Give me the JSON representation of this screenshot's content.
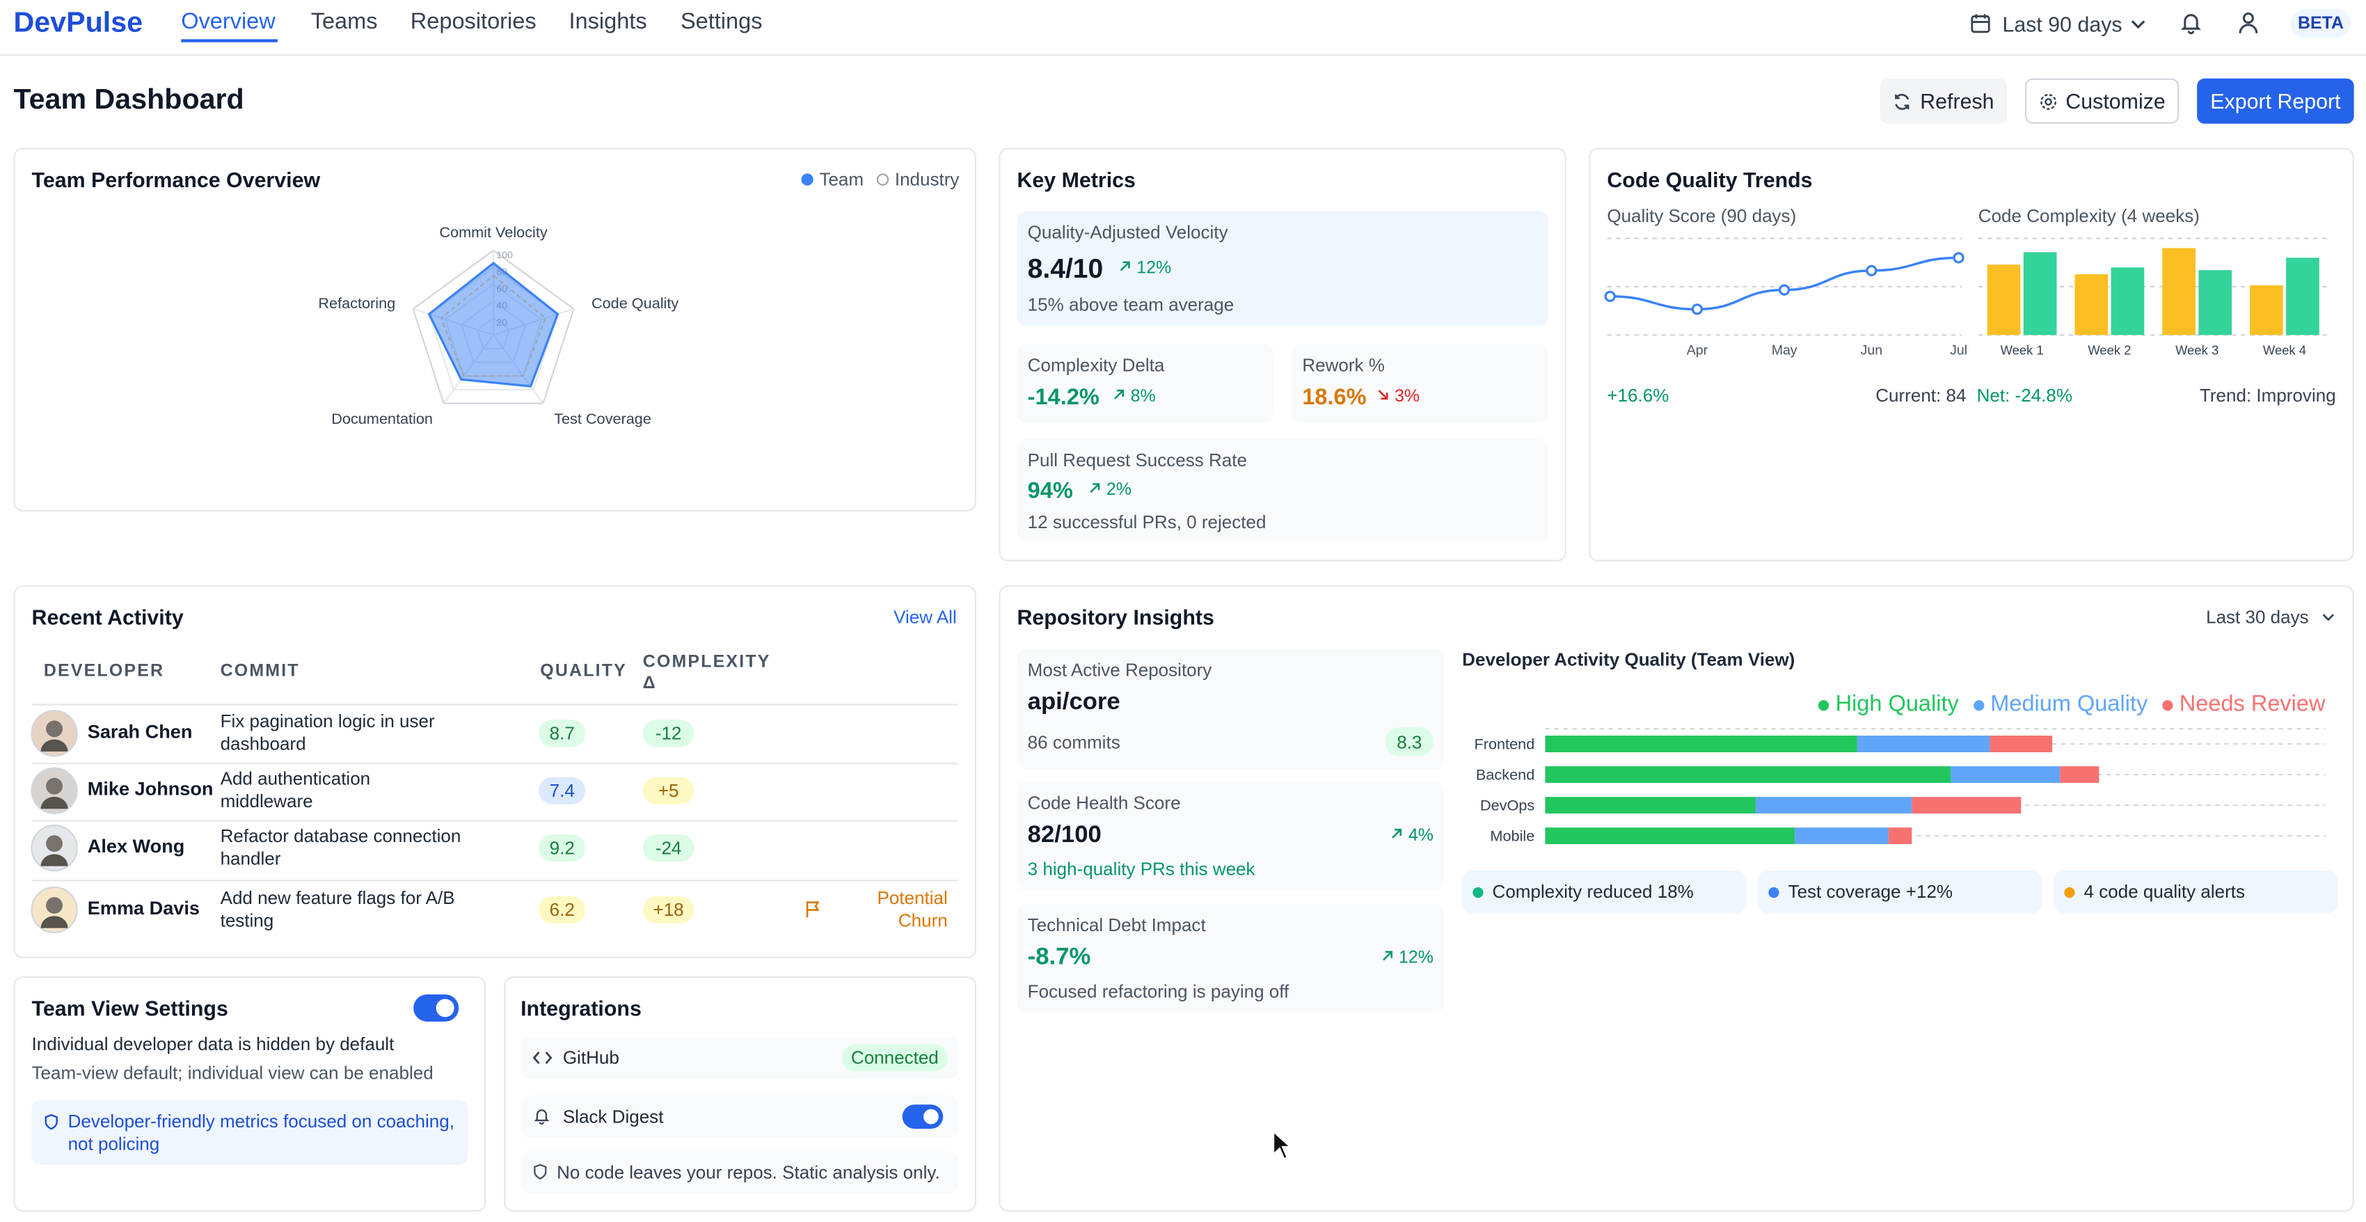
{
  "nav": {
    "brand": "DevPulse",
    "links": [
      "Overview",
      "Teams",
      "Repositories",
      "Insights",
      "Settings"
    ],
    "date_range": "Last 90 days",
    "badge": "BETA"
  },
  "header": {
    "title": "Team Dashboard",
    "refresh": "Refresh",
    "customize": "Customize",
    "export": "Export Report"
  },
  "key_metrics": {
    "title": "Key Metrics",
    "cards": [
      {
        "label": "Quality-Adjusted Velocity",
        "value": "8.4/10",
        "change": "12%",
        "note": "15% above team average"
      },
      {
        "label": "Complexity Delta",
        "value": "-14.2%",
        "change": "8%"
      },
      {
        "label": "Rework %",
        "value": "18.6%",
        "change": "3%"
      },
      {
        "label": "Pull Request Success Rate",
        "value": "94%",
        "change": "2%",
        "note": "12 successful PRs, 0 rejected"
      }
    ]
  },
  "quality_trends": {
    "title": "Code Quality Trends"
  },
  "activity": {
    "title": "Recent Activity",
    "view_all": "View All",
    "columns": [
      "DEVELOPER",
      "COMMIT",
      "QUALITY",
      "COMPLEXITY Δ"
    ],
    "rows": [
      {
        "developer": "Sarah Chen",
        "commit": "Fix pagination logic in user dashboard",
        "quality": "8.7",
        "complexity": "-12"
      },
      {
        "developer": "Mike Johnson",
        "commit": "Add authentication middleware",
        "quality": "7.4",
        "complexity": "+5"
      },
      {
        "developer": "Alex Wong",
        "commit": "Refactor database connection handler",
        "quality": "9.2",
        "complexity": "-24"
      },
      {
        "developer": "Emma Davis",
        "commit": "Add new feature flags for A/B testing",
        "quality": "6.2",
        "complexity": "+18",
        "flag": "Potential Churn"
      }
    ]
  },
  "repository": {
    "title": "Repository Insights",
    "range": "Last 30 days",
    "cards": [
      {
        "label": "Most Active Repository",
        "value": "api/core",
        "note": "86 commits",
        "badge": "8.3"
      },
      {
        "label": "Code Health Score",
        "value": "82/100",
        "change": "4%",
        "note": "3 high-quality PRs this week"
      },
      {
        "label": "Technical Debt Impact",
        "value": "-8.7%",
        "change": "12%",
        "note": "Focused refactoring is paying off"
      }
    ],
    "chips": [
      "Complexity reduced 18%",
      "Test coverage +12%",
      "4 code quality alerts"
    ]
  },
  "settings": {
    "title": "Team View Settings",
    "lines": [
      "Individual developer data is hidden by default",
      "Team-view default; individual view can be enabled"
    ],
    "note": "Developer-friendly metrics focused on coaching, not policing"
  },
  "integrations": {
    "title": "Integrations",
    "items": [
      {
        "name": "GitHub",
        "status": "Connected"
      },
      {
        "name": "Slack Digest"
      }
    ],
    "note": "No code leaves your repos. Static analysis only."
  },
  "chart_data": [
    {
      "type": "radar",
      "title": "Team Performance Overview",
      "categories": [
        "Commit Velocity",
        "Code Quality",
        "Test Coverage",
        "Documentation",
        "Refactoring"
      ],
      "series": [
        {
          "name": "Team",
          "color": "#3b82f6",
          "values": [
            85,
            80,
            75,
            65,
            80
          ]
        },
        {
          "name": "Industry",
          "color": "#9ca3af",
          "values": [
            70,
            65,
            60,
            60,
            65
          ]
        }
      ],
      "rlim": [
        0,
        100
      ],
      "rticks": [
        20,
        40,
        60,
        80,
        100
      ]
    },
    {
      "type": "line",
      "title": "Quality Score (90 days)",
      "categories": [
        null,
        "Apr",
        "May",
        "Jun",
        "Jul"
      ],
      "values": [
        72,
        68,
        74,
        80,
        84
      ],
      "color": "#3b82f6",
      "ylim": [
        60,
        90
      ],
      "annotations": [
        "+16.6%",
        "Current: 84"
      ]
    },
    {
      "type": "bar",
      "title": "Code Complexity (4 weeks)",
      "categories": [
        "Week 1",
        "Week 2",
        "Week 3",
        "Week 4"
      ],
      "series": [
        {
          "color": "#fbbf24",
          "values": [
            51,
            44,
            63,
            36
          ]
        },
        {
          "color": "#34d399",
          "values": [
            60,
            49,
            47,
            56
          ]
        }
      ],
      "ylim": [
        0,
        70
      ],
      "annotations": [
        "Net: -24.8%",
        "Trend: Improving"
      ]
    },
    {
      "type": "hbar",
      "title": "Developer Activity Quality (Team View)",
      "categories": [
        "Frontend",
        "Backend",
        "DevOps",
        "Mobile"
      ],
      "series": [
        {
          "name": "High Quality",
          "color": "#22c55e",
          "values": [
            40,
            52,
            27,
            32
          ]
        },
        {
          "name": "Medium Quality",
          "color": "#60a5fa",
          "values": [
            17,
            14,
            20,
            12
          ]
        },
        {
          "name": "Needs Review",
          "color": "#f87171",
          "values": [
            8,
            5,
            14,
            3
          ]
        }
      ],
      "xlim": [
        0,
        100
      ],
      "stacked": true
    }
  ]
}
